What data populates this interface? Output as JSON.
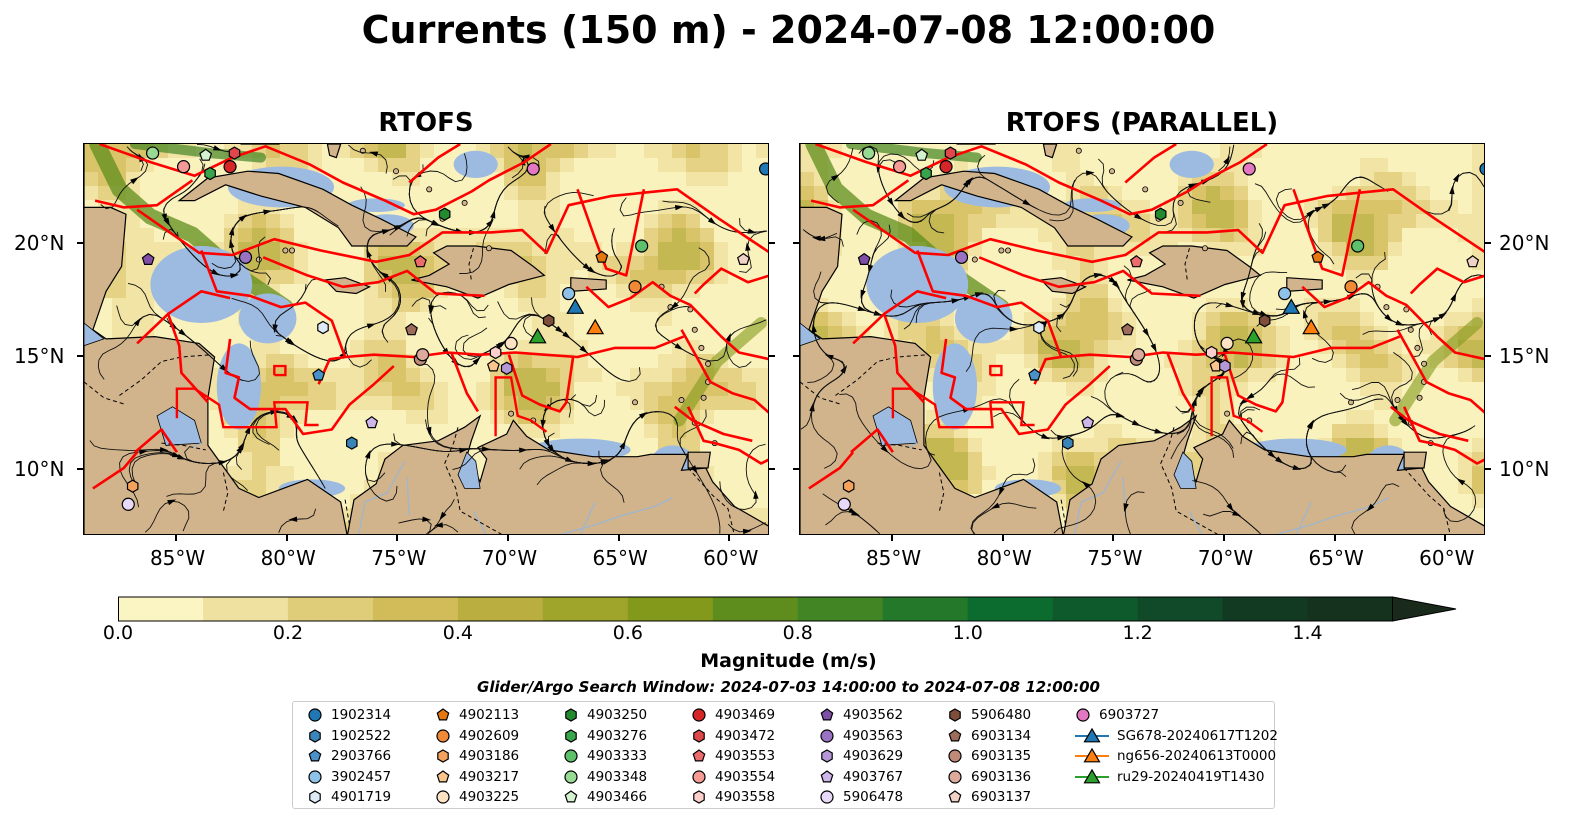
{
  "title": "Currents (150 m) - 2024-07-08 12:00:00",
  "panels": [
    {
      "title": "RTOFS"
    },
    {
      "title": "RTOFS (PARALLEL)"
    }
  ],
  "lon_ticks": [
    "85°W",
    "80°W",
    "75°W",
    "70°W",
    "65°W",
    "60°W"
  ],
  "lat_ticks": [
    "20°N",
    "15°N",
    "10°N"
  ],
  "colorbar": {
    "label": "Magnitude (m/s)",
    "ticks": [
      "0.0",
      "0.2",
      "0.4",
      "0.6",
      "0.8",
      "1.0",
      "1.2",
      "1.4"
    ],
    "colors": [
      "#fbf5c4",
      "#efe2a0",
      "#e0cd7a",
      "#d2bc5a",
      "#b9ae3f",
      "#9ea52a",
      "#82991b",
      "#5f8d1d",
      "#418524",
      "#237829",
      "#0c6b2f",
      "#0e5a2c",
      "#104a28",
      "#123a23",
      "#15321f",
      "#1a2a1a"
    ]
  },
  "search_window": "Glider/Argo Search Window: 2024-07-03 14:00:00 to 2024-07-08 12:00:00",
  "colors": {
    "water": "#9dbbe0",
    "land": "#d2b48c",
    "eez": "#ff0000"
  },
  "legend": [
    {
      "label": "1902314",
      "marker": "circle",
      "color": "#1f77b4"
    },
    {
      "label": "1902522",
      "marker": "hexagon",
      "color": "#3a84b8"
    },
    {
      "label": "2903766",
      "marker": "pentagon",
      "color": "#4a90c9"
    },
    {
      "label": "3902457",
      "marker": "circle",
      "color": "#8ec2e8"
    },
    {
      "label": "4901719",
      "marker": "hexagon",
      "color": "#deebf7"
    },
    {
      "label": "4902113",
      "marker": "pentagon",
      "color": "#e6760f"
    },
    {
      "label": "4902609",
      "marker": "circle",
      "color": "#f08a36"
    },
    {
      "label": "4903186",
      "marker": "hexagon",
      "color": "#f5a35c"
    },
    {
      "label": "4903217",
      "marker": "pentagon",
      "color": "#fbc68e"
    },
    {
      "label": "4903225",
      "marker": "circle",
      "color": "#fde2c4"
    },
    {
      "label": "4903250",
      "marker": "hexagon",
      "color": "#238b2e"
    },
    {
      "label": "4903276",
      "marker": "hexagon",
      "color": "#3aa44a"
    },
    {
      "label": "4903333",
      "marker": "circle",
      "color": "#5ec06a"
    },
    {
      "label": "4903348",
      "marker": "circle",
      "color": "#98d993"
    },
    {
      "label": "4903466",
      "marker": "pentagon",
      "color": "#d4f2cf"
    },
    {
      "label": "4903469",
      "marker": "circle",
      "color": "#d62728"
    },
    {
      "label": "4903472",
      "marker": "hexagon",
      "color": "#e0474a"
    },
    {
      "label": "4903553",
      "marker": "pentagon",
      "color": "#ee6b6b"
    },
    {
      "label": "4903554",
      "marker": "circle",
      "color": "#f49b95"
    },
    {
      "label": "4903558",
      "marker": "hexagon",
      "color": "#fbd0cc"
    },
    {
      "label": "4903562",
      "marker": "pentagon",
      "color": "#7f4fa8"
    },
    {
      "label": "4903563",
      "marker": "circle",
      "color": "#9a72c2"
    },
    {
      "label": "4903629",
      "marker": "hexagon",
      "color": "#b497d6"
    },
    {
      "label": "4903767",
      "marker": "pentagon",
      "color": "#cdb6ea"
    },
    {
      "label": "5906478",
      "marker": "circle",
      "color": "#e7d9f7"
    },
    {
      "label": "5906480",
      "marker": "hexagon",
      "color": "#7d4e3a"
    },
    {
      "label": "6903134",
      "marker": "pentagon",
      "color": "#9e6c5a"
    },
    {
      "label": "6903135",
      "marker": "circle",
      "color": "#c08a78"
    },
    {
      "label": "6903136",
      "marker": "circle",
      "color": "#dcab9b"
    },
    {
      "label": "6903137",
      "marker": "pentagon",
      "color": "#f1d2c6"
    },
    {
      "label": "6903727",
      "marker": "circle",
      "color": "#e377c2"
    },
    {
      "label": "SG678-20240617T1202",
      "marker": "triangle",
      "color": "#1f77b4"
    },
    {
      "label": "ng656-20240613T0000",
      "marker": "triangle",
      "color": "#ff7f0e"
    },
    {
      "label": "ru29-20240419T1430",
      "marker": "triangle",
      "color": "#2ca02c"
    }
  ]
}
